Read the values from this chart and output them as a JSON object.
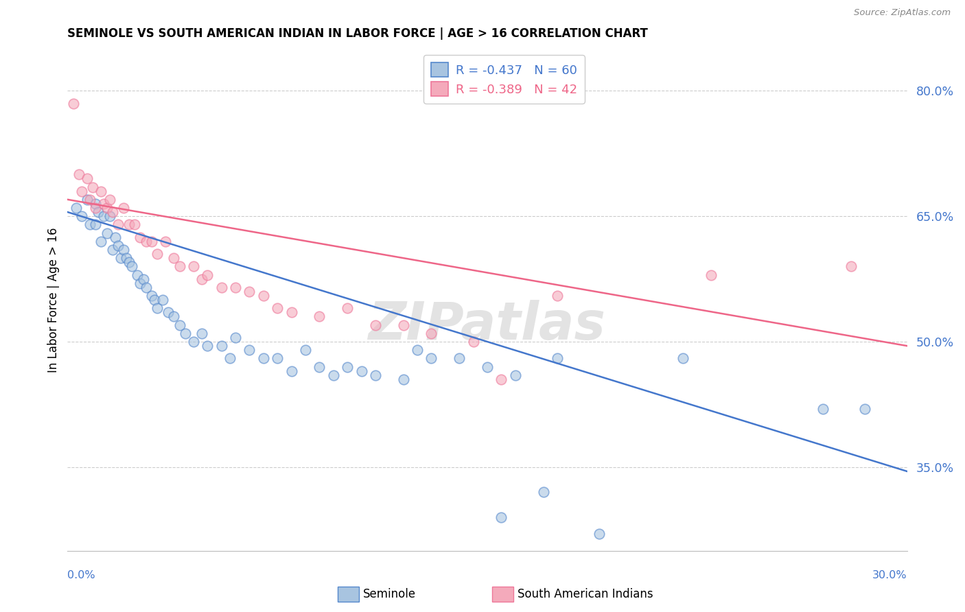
{
  "title": "SEMINOLE VS SOUTH AMERICAN INDIAN IN LABOR FORCE | AGE > 16 CORRELATION CHART",
  "source": "Source: ZipAtlas.com",
  "ylabel": "In Labor Force | Age > 16",
  "xlim": [
    0.0,
    0.3
  ],
  "ylim": [
    0.25,
    0.85
  ],
  "y_ticks": [
    0.35,
    0.5,
    0.65,
    0.8
  ],
  "y_tick_labels": [
    "35.0%",
    "50.0%",
    "65.0%",
    "80.0%"
  ],
  "blue_R": -0.437,
  "blue_N": 60,
  "pink_R": -0.389,
  "pink_N": 42,
  "blue_fill": "#A8C4E0",
  "pink_fill": "#F4AABB",
  "blue_edge": "#5588CC",
  "pink_edge": "#EE7799",
  "blue_line": "#4477CC",
  "pink_line": "#EE6688",
  "watermark": "ZIPatlas",
  "blue_scatter_x": [
    0.003,
    0.005,
    0.007,
    0.008,
    0.01,
    0.01,
    0.011,
    0.012,
    0.013,
    0.014,
    0.015,
    0.016,
    0.017,
    0.018,
    0.019,
    0.02,
    0.021,
    0.022,
    0.023,
    0.025,
    0.026,
    0.027,
    0.028,
    0.03,
    0.031,
    0.032,
    0.034,
    0.036,
    0.038,
    0.04,
    0.042,
    0.045,
    0.048,
    0.05,
    0.055,
    0.058,
    0.06,
    0.065,
    0.07,
    0.075,
    0.08,
    0.085,
    0.09,
    0.095,
    0.1,
    0.105,
    0.11,
    0.12,
    0.125,
    0.13,
    0.14,
    0.15,
    0.155,
    0.16,
    0.17,
    0.175,
    0.19,
    0.22,
    0.27,
    0.285
  ],
  "blue_scatter_y": [
    0.66,
    0.65,
    0.67,
    0.64,
    0.665,
    0.64,
    0.655,
    0.62,
    0.65,
    0.63,
    0.65,
    0.61,
    0.625,
    0.615,
    0.6,
    0.61,
    0.6,
    0.595,
    0.59,
    0.58,
    0.57,
    0.575,
    0.565,
    0.555,
    0.55,
    0.54,
    0.55,
    0.535,
    0.53,
    0.52,
    0.51,
    0.5,
    0.51,
    0.495,
    0.495,
    0.48,
    0.505,
    0.49,
    0.48,
    0.48,
    0.465,
    0.49,
    0.47,
    0.46,
    0.47,
    0.465,
    0.46,
    0.455,
    0.49,
    0.48,
    0.48,
    0.47,
    0.29,
    0.46,
    0.32,
    0.48,
    0.27,
    0.48,
    0.42,
    0.42
  ],
  "pink_scatter_x": [
    0.002,
    0.004,
    0.005,
    0.007,
    0.008,
    0.009,
    0.01,
    0.012,
    0.013,
    0.014,
    0.015,
    0.016,
    0.018,
    0.02,
    0.022,
    0.024,
    0.026,
    0.028,
    0.03,
    0.032,
    0.035,
    0.038,
    0.04,
    0.045,
    0.048,
    0.05,
    0.055,
    0.06,
    0.065,
    0.07,
    0.075,
    0.08,
    0.09,
    0.1,
    0.11,
    0.12,
    0.13,
    0.145,
    0.155,
    0.175,
    0.23,
    0.28
  ],
  "pink_scatter_y": [
    0.785,
    0.7,
    0.68,
    0.695,
    0.67,
    0.685,
    0.66,
    0.68,
    0.665,
    0.66,
    0.67,
    0.655,
    0.64,
    0.66,
    0.64,
    0.64,
    0.625,
    0.62,
    0.62,
    0.605,
    0.62,
    0.6,
    0.59,
    0.59,
    0.575,
    0.58,
    0.565,
    0.565,
    0.56,
    0.555,
    0.54,
    0.535,
    0.53,
    0.54,
    0.52,
    0.52,
    0.51,
    0.5,
    0.455,
    0.555,
    0.58,
    0.59
  ],
  "blue_line_x0": 0.0,
  "blue_line_x1": 0.3,
  "blue_line_y0": 0.655,
  "blue_line_y1": 0.345,
  "pink_line_x0": 0.0,
  "pink_line_x1": 0.3,
  "pink_line_y0": 0.67,
  "pink_line_y1": 0.495,
  "legend_blue_label": "R = -0.437   N = 60",
  "legend_pink_label": "R = -0.389   N = 42",
  "bottom_label1": "Seminole",
  "bottom_label2": "South American Indians"
}
